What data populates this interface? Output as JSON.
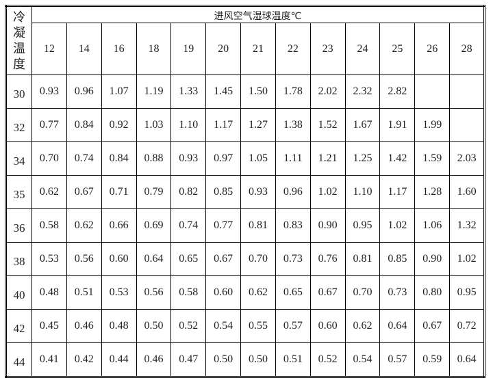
{
  "table": {
    "corner": "冷凝温度",
    "group_header": "进风空气湿球温度℃",
    "columns": [
      "12",
      "14",
      "16",
      "18",
      "19",
      "20",
      "21",
      "22",
      "23",
      "24",
      "25",
      "26",
      "28"
    ],
    "rows": [
      [
        "30",
        "0.93",
        "0.96",
        "1.07",
        "1.19",
        "1.33",
        "1.45",
        "1.50",
        "1.78",
        "2.02",
        "2.32",
        "2.82",
        null,
        null
      ],
      [
        "32",
        "0.77",
        "0.84",
        "0.92",
        "1.03",
        "1.10",
        "1.17",
        "1.27",
        "1.38",
        "1.52",
        "1.67",
        "1.91",
        "1.99",
        null
      ],
      [
        "34",
        "0.70",
        "0.74",
        "0.84",
        "0.88",
        "0.93",
        "0.97",
        "1.05",
        "1.11",
        "1.21",
        "1.25",
        "1.42",
        "1.59",
        "2.03"
      ],
      [
        "35",
        "0.62",
        "0.67",
        "0.71",
        "0.79",
        "0.82",
        "0.85",
        "0.93",
        "0.96",
        "1.02",
        "1.10",
        "1.17",
        "1.28",
        "1.60"
      ],
      [
        "36",
        "0.58",
        "0.62",
        "0.66",
        "0.69",
        "0.74",
        "0.77",
        "0.81",
        "0.83",
        "0.90",
        "0.95",
        "1.02",
        "1.06",
        "1.32"
      ],
      [
        "38",
        "0.53",
        "0.56",
        "0.60",
        "0.64",
        "0.65",
        "0.67",
        "0.70",
        "0.73",
        "0.76",
        "0.81",
        "0.85",
        "0.90",
        "1.02"
      ],
      [
        "40",
        "0.48",
        "0.51",
        "0.53",
        "0.56",
        "0.58",
        "0.60",
        "0.62",
        "0.65",
        "0.67",
        "0.70",
        "0.73",
        "0.80",
        "0.95"
      ],
      [
        "42",
        "0.45",
        "0.46",
        "0.48",
        "0.50",
        "0.52",
        "0.54",
        "0.55",
        "0.57",
        "0.60",
        "0.62",
        "0.64",
        "0.67",
        "0.72"
      ],
      [
        "44",
        "0.41",
        "0.42",
        "0.44",
        "0.46",
        "0.47",
        "0.50",
        "0.50",
        "0.51",
        "0.52",
        "0.54",
        "0.57",
        "0.59",
        "0.64"
      ]
    ]
  }
}
